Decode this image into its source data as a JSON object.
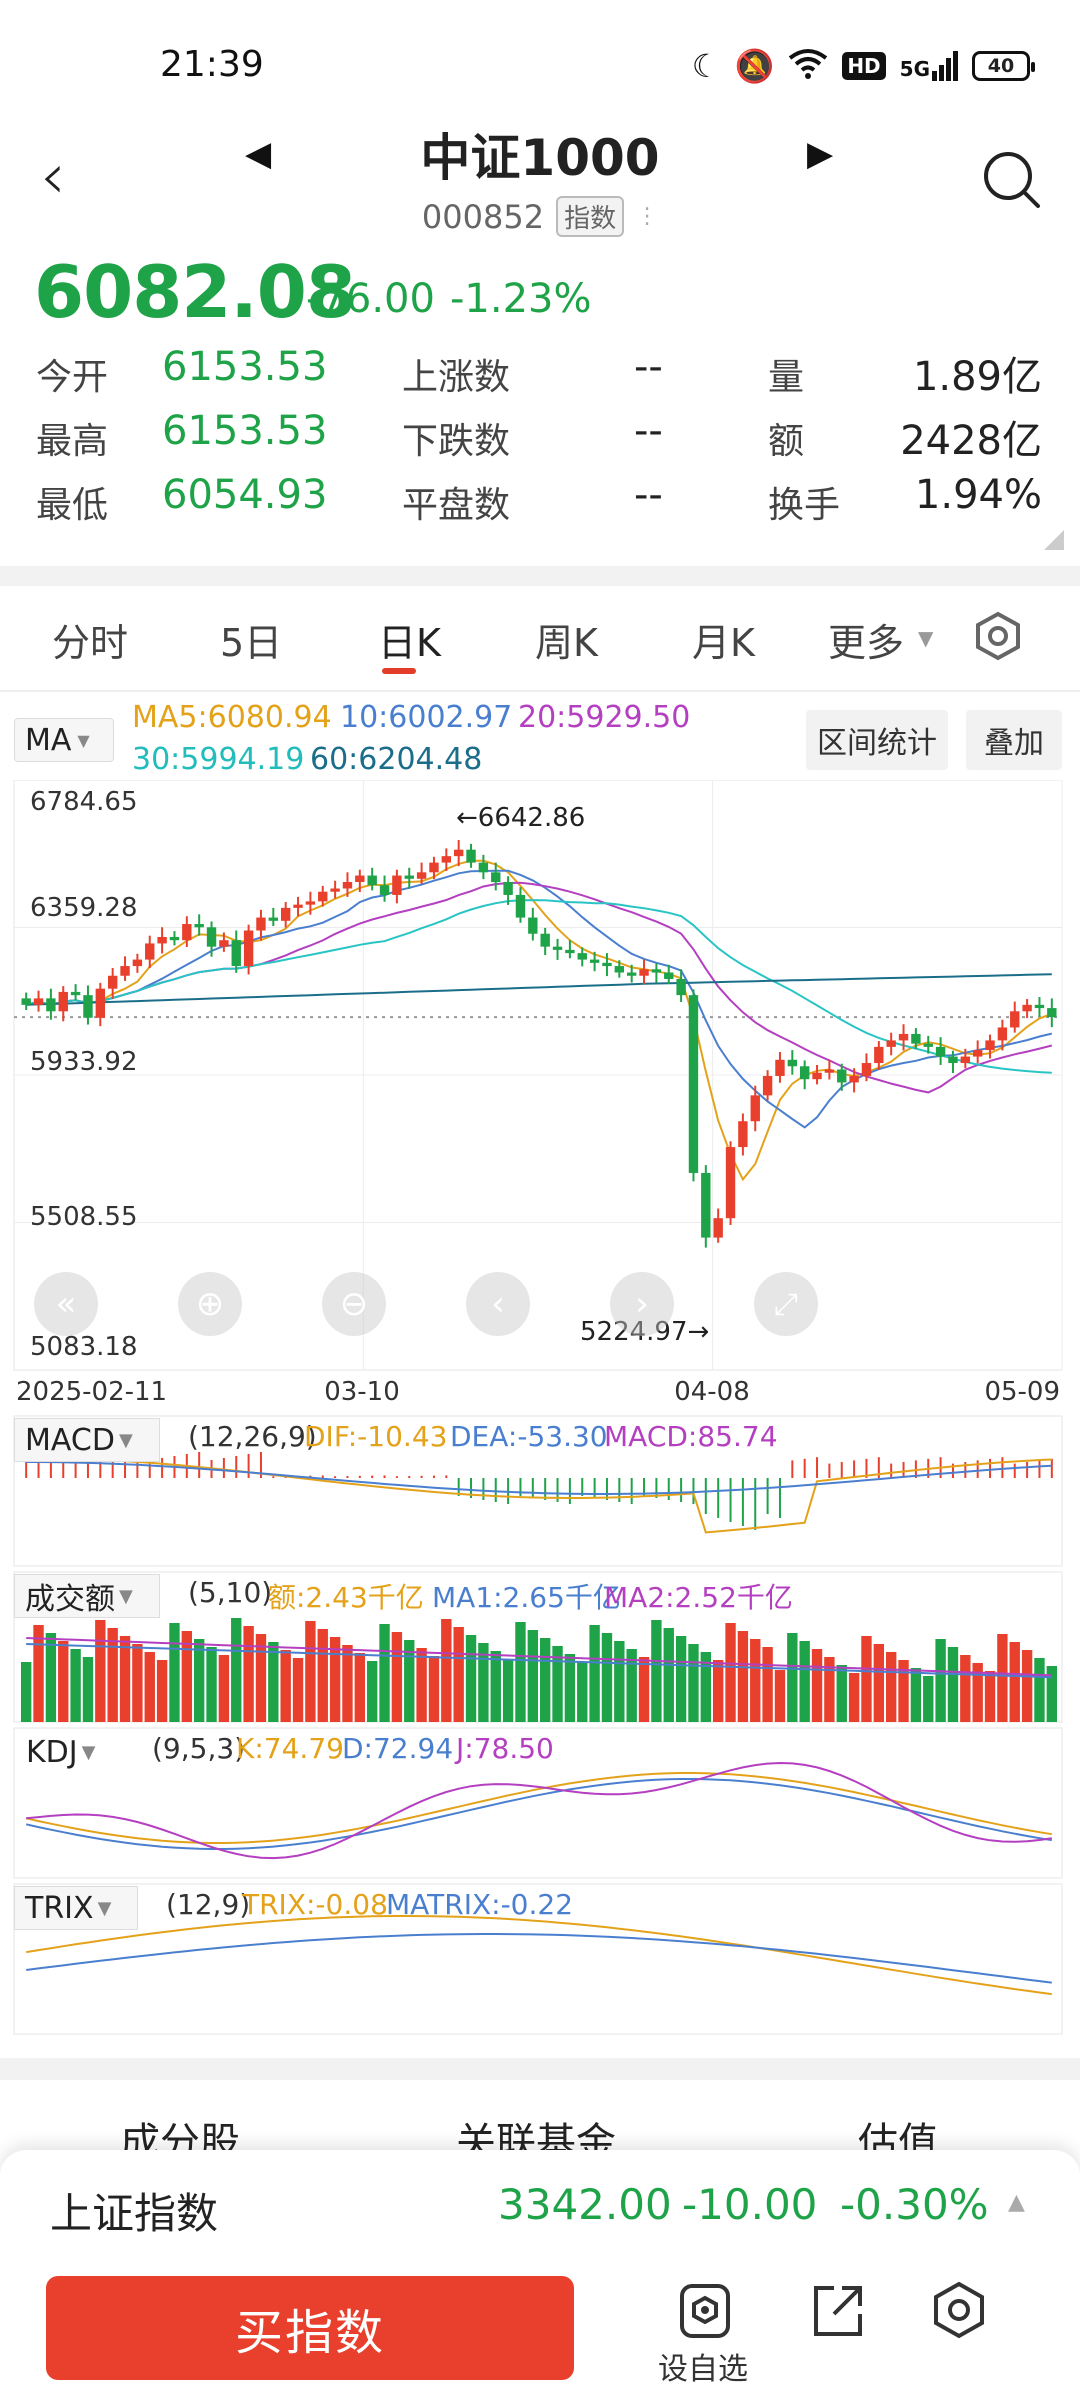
{
  "status_bar": {
    "time": "21:39",
    "network": "5G",
    "hd": "HD",
    "battery": "40"
  },
  "header": {
    "title": "中证1000",
    "code": "000852",
    "tag": "指数"
  },
  "quote": {
    "price": "6082.08",
    "change": "-76.00",
    "change_pct": "-1.23%"
  },
  "stats": {
    "open_label": "今开",
    "open": "6153.53",
    "high_label": "最高",
    "high": "6153.53",
    "low_label": "最低",
    "low": "6054.93",
    "up_label": "上涨数",
    "up": "--",
    "down_label": "下跌数",
    "down": "--",
    "flat_label": "平盘数",
    "flat": "--",
    "vol_label": "量",
    "vol": "1.89亿",
    "amt_label": "额",
    "amt": "2428亿",
    "turn_label": "换手",
    "turn": "1.94%"
  },
  "tabs": [
    "分时",
    "5日",
    "日K",
    "周K",
    "月K",
    "更多"
  ],
  "active_tab": "日K",
  "chart_header": {
    "ma_select": "MA",
    "ma5": "MA5:6080.94",
    "ma10": "10:6002.97",
    "ma20": "20:5929.50",
    "ma30": "30:5994.19",
    "ma60": "60:6204.48",
    "range_stats": "区间统计",
    "overlay": "叠加"
  },
  "indicators": {
    "macd": {
      "name": "MACD",
      "params": "(12,26,9)",
      "dif": "DIF:-10.43",
      "dea": "DEA:-53.30",
      "macd": "MACD:85.74"
    },
    "volume": {
      "name": "成交额",
      "params": "(5,10)",
      "amt": "额:2.43千亿",
      "ma1": "MA1:2.65千亿",
      "ma2": "MA2:2.52千亿"
    },
    "kdj": {
      "name": "KDJ",
      "params": "(9,5,3)",
      "k": "K:74.79",
      "d": "D:72.94",
      "j": "J:78.50"
    },
    "trix": {
      "name": "TRIX",
      "params": "(12,9)",
      "trix": "TRIX:-0.08",
      "matrix": "MATRIX:-0.22"
    }
  },
  "bottom": {
    "tabs": [
      "成分股",
      "关联基金",
      "估值"
    ],
    "index_name": "上证指数",
    "index_price": "3342.00",
    "index_change": "-10.00",
    "index_pct": "-0.30%",
    "buy": "买指数",
    "watch": "设自选"
  },
  "colors": {
    "up": "#e8402c",
    "down": "#1fa348",
    "ma5": "#e3a21a",
    "ma10": "#4a7fcf",
    "ma20": "#b43fc0",
    "ma30": "#29c4c4",
    "ma60": "#1b6e8a"
  },
  "chart_data": {
    "type": "candlestick",
    "x_tick_labels": [
      "2025-02-11",
      "03-10",
      "04-08",
      "05-09"
    ],
    "y_tick_labels": [
      "6784.65",
      "6359.28",
      "5933.92",
      "5508.55",
      "5083.18"
    ],
    "ylim": [
      5083.18,
      6784.65
    ],
    "annotations": {
      "high": "6642.86",
      "low": "5224.97"
    },
    "series_names": [
      "MA5",
      "10",
      "20",
      "30",
      "60"
    ],
    "closes": [
      6120,
      6140,
      6100,
      6160,
      6150,
      6080,
      6170,
      6210,
      6240,
      6260,
      6310,
      6330,
      6320,
      6370,
      6360,
      6300,
      6320,
      6240,
      6350,
      6390,
      6380,
      6420,
      6430,
      6440,
      6470,
      6480,
      6500,
      6520,
      6490,
      6460,
      6520,
      6510,
      6530,
      6560,
      6580,
      6600,
      6560,
      6530,
      6500,
      6460,
      6390,
      6340,
      6300,
      6290,
      6280,
      6260,
      6250,
      6240,
      6220,
      6210,
      6230,
      6220,
      6200,
      6150,
      5600,
      5400,
      5460,
      5680,
      5760,
      5840,
      5900,
      5950,
      5930,
      5890,
      5910,
      5920,
      5880,
      5900,
      5940,
      5990,
      6010,
      6030,
      6000,
      5990,
      5960,
      5940,
      5960,
      5980,
      6010,
      6050,
      6100,
      6120,
      6110,
      6082
    ]
  }
}
